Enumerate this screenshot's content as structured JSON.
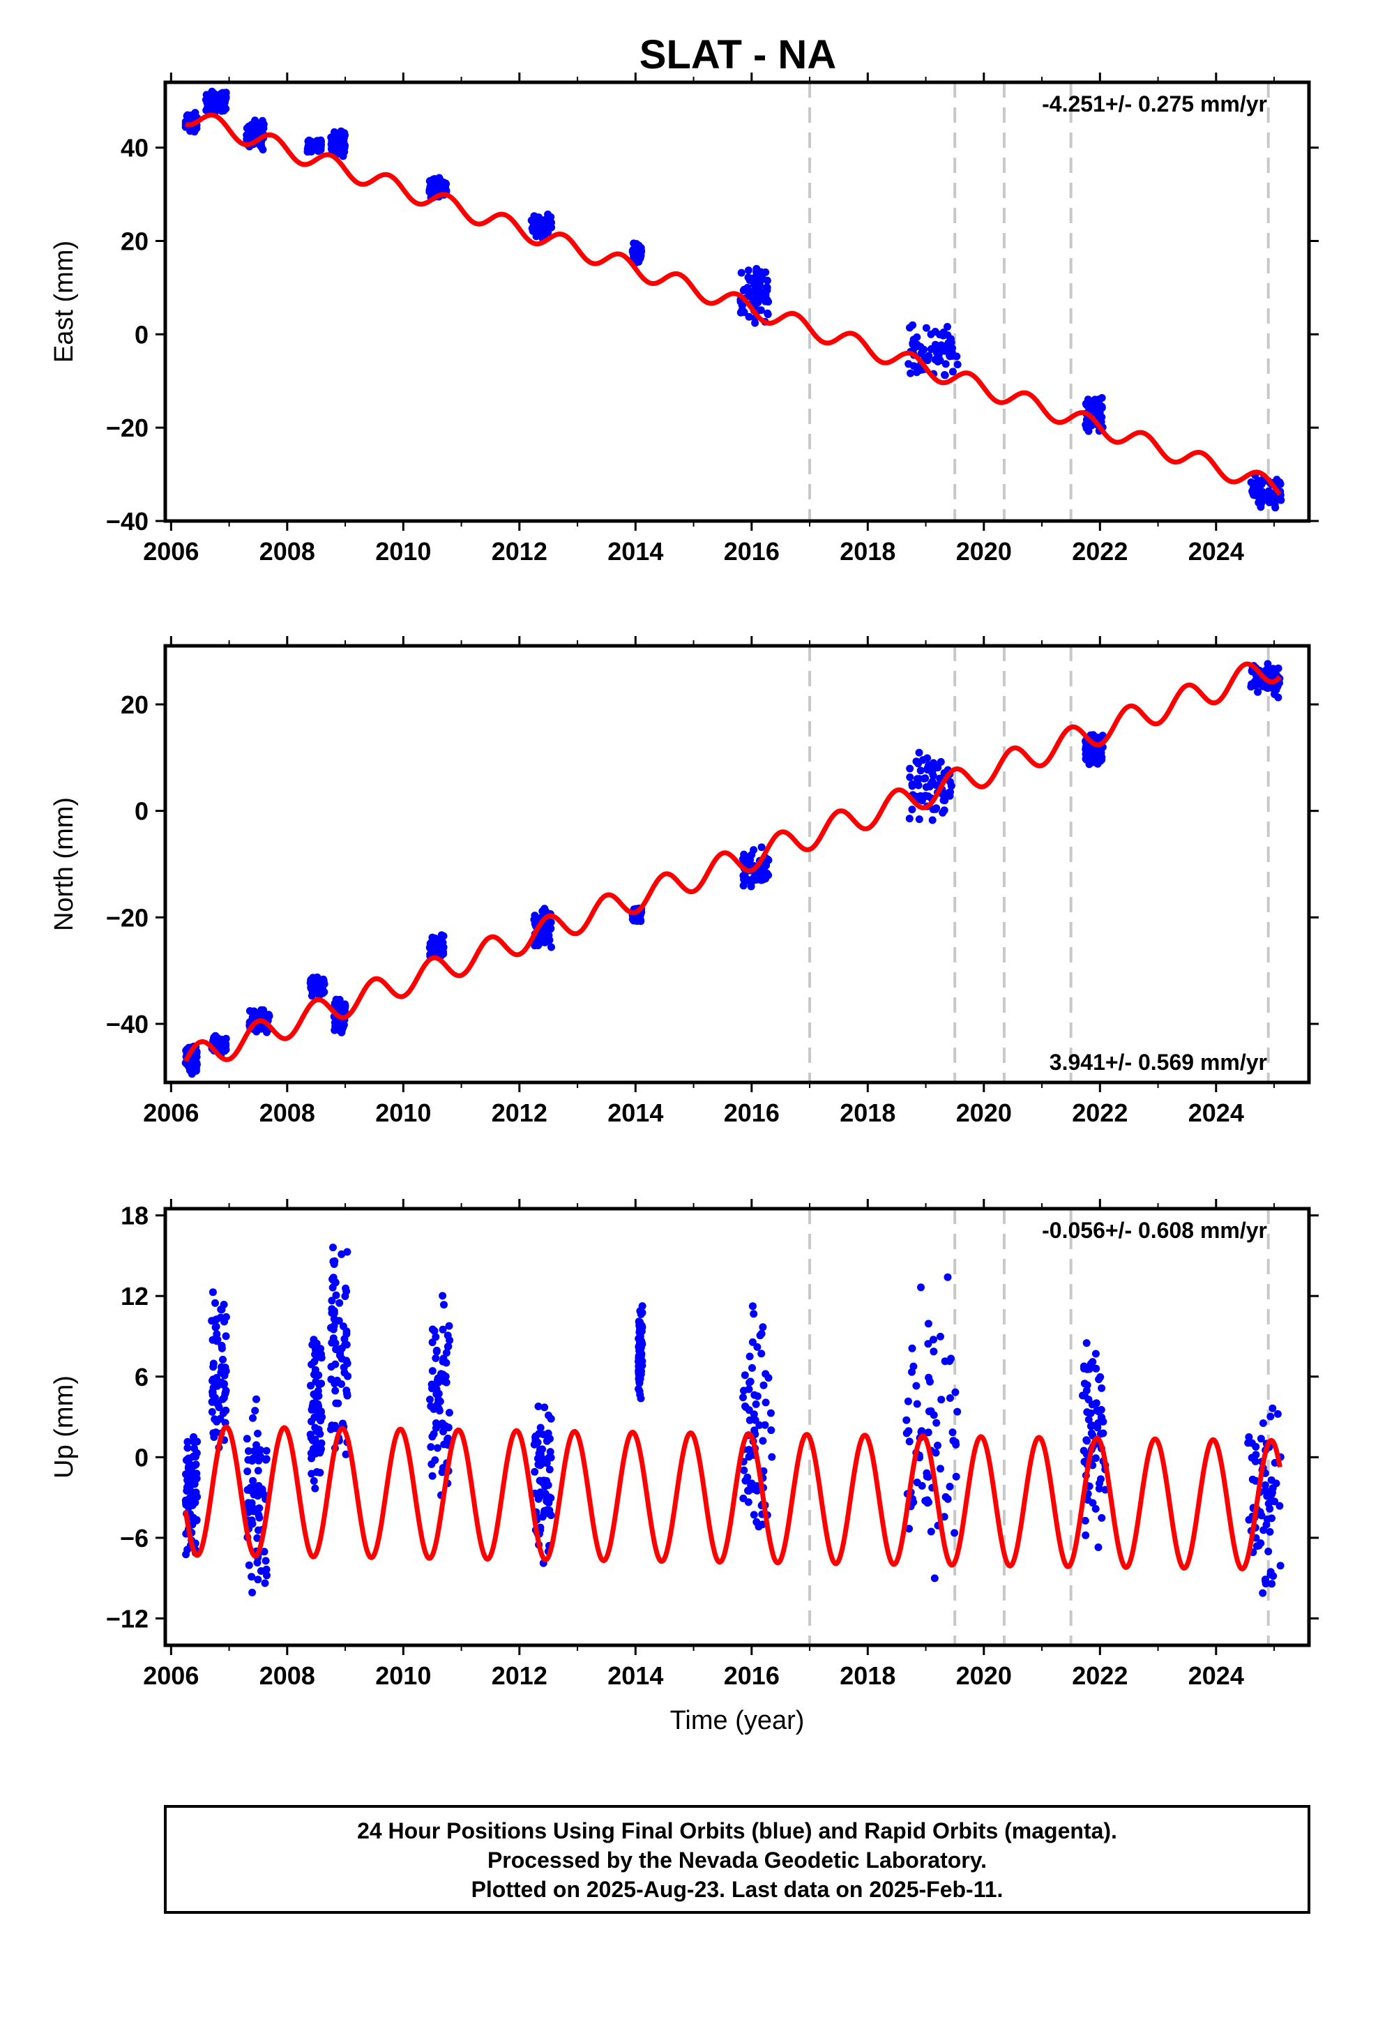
{
  "title": "SLAT - NA",
  "footer": {
    "lines": [
      "24 Hour Positions Using Final Orbits (blue) and Rapid Orbits (magenta).",
      "Processed by the Nevada Geodetic Laboratory.",
      "Plotted on 2025-Aug-23. Last data on 2025-Feb-11."
    ]
  },
  "colors": {
    "data": "#0000ff",
    "model": "#ff0000",
    "breaks": "#c8c8c8",
    "frame": "#000000"
  },
  "chart_data": [
    {
      "type": "scatter",
      "component": "east",
      "ylabel": "East (mm)",
      "xlabel": "",
      "xlim": [
        2005.9,
        2025.6
      ],
      "ylim": [
        -40,
        54
      ],
      "xticks": [
        2006,
        2008,
        2010,
        2012,
        2014,
        2016,
        2018,
        2020,
        2022,
        2024
      ],
      "yticks": [
        -40,
        -20,
        0,
        20,
        40
      ],
      "rate_label": "-4.251+/- 0.275 mm/yr",
      "rate_position": "top-right",
      "grid": false,
      "breaks": [
        2017.0,
        2019.5,
        2020.35,
        2021.5,
        2024.9
      ],
      "model": {
        "start": 2006.25,
        "end": 2025.1,
        "start_value": 47.0,
        "rate": -4.251,
        "amplitude": 2.0,
        "phase_year": 2006.75
      },
      "clusters": [
        {
          "x": [
            2006.25,
            2006.45
          ],
          "y": [
            43,
            48
          ]
        },
        {
          "x": [
            2006.6,
            2006.95
          ],
          "y": [
            47,
            53
          ]
        },
        {
          "x": [
            2007.3,
            2007.6
          ],
          "y": [
            39,
            46
          ]
        },
        {
          "x": [
            2008.35,
            2008.6
          ],
          "y": [
            39,
            42
          ]
        },
        {
          "x": [
            2008.75,
            2009.0
          ],
          "y": [
            38,
            44
          ]
        },
        {
          "x": [
            2010.45,
            2010.75
          ],
          "y": [
            29,
            34
          ]
        },
        {
          "x": [
            2012.2,
            2012.55
          ],
          "y": [
            20,
            26
          ]
        },
        {
          "x": [
            2013.95,
            2014.1
          ],
          "y": [
            15,
            20
          ]
        },
        {
          "x": [
            2015.8,
            2016.3
          ],
          "y": [
            2,
            15
          ]
        },
        {
          "x": [
            2018.7,
            2019.55
          ],
          "y": [
            -10,
            3
          ]
        },
        {
          "x": [
            2021.75,
            2022.05
          ],
          "y": [
            -21,
            -13
          ]
        },
        {
          "x": [
            2024.6,
            2025.12
          ],
          "y": [
            -38,
            -30
          ]
        }
      ]
    },
    {
      "type": "scatter",
      "component": "north",
      "ylabel": "North (mm)",
      "xlabel": "",
      "xlim": [
        2005.9,
        2025.6
      ],
      "ylim": [
        -51,
        31
      ],
      "xticks": [
        2006,
        2008,
        2010,
        2012,
        2014,
        2016,
        2018,
        2020,
        2022,
        2024
      ],
      "yticks": [
        -40,
        -20,
        0,
        20
      ],
      "rate_label": "3.941+/- 0.569 mm/yr",
      "rate_position": "bottom-right",
      "grid": false,
      "breaks": [
        2017.0,
        2019.5,
        2020.35,
        2021.5,
        2024.9
      ],
      "model": {
        "start": 2006.25,
        "end": 2025.1,
        "start_value": -47.0,
        "rate": 3.941,
        "amplitude": 2.6,
        "phase_year": 2006.5
      },
      "clusters": [
        {
          "x": [
            2006.25,
            2006.45
          ],
          "y": [
            -50,
            -44
          ]
        },
        {
          "x": [
            2006.7,
            2006.95
          ],
          "y": [
            -46,
            -42
          ]
        },
        {
          "x": [
            2007.35,
            2007.7
          ],
          "y": [
            -42,
            -37
          ]
        },
        {
          "x": [
            2008.4,
            2008.65
          ],
          "y": [
            -35,
            -31
          ]
        },
        {
          "x": [
            2008.8,
            2009.0
          ],
          "y": [
            -42,
            -35
          ]
        },
        {
          "x": [
            2010.45,
            2010.7
          ],
          "y": [
            -28,
            -23
          ]
        },
        {
          "x": [
            2012.25,
            2012.55
          ],
          "y": [
            -26,
            -18
          ]
        },
        {
          "x": [
            2013.95,
            2014.1
          ],
          "y": [
            -21,
            -18
          ]
        },
        {
          "x": [
            2015.85,
            2016.3
          ],
          "y": [
            -15,
            -6
          ]
        },
        {
          "x": [
            2018.7,
            2019.45
          ],
          "y": [
            -3,
            12
          ]
        },
        {
          "x": [
            2021.75,
            2022.05
          ],
          "y": [
            8,
            15
          ]
        },
        {
          "x": [
            2024.6,
            2025.12
          ],
          "y": [
            21,
            28
          ]
        }
      ]
    },
    {
      "type": "scatter",
      "component": "up",
      "ylabel": "Up (mm)",
      "xlabel": "Time (year)",
      "xlim": [
        2005.9,
        2025.6
      ],
      "ylim": [
        -14,
        18.5
      ],
      "xticks": [
        2006,
        2008,
        2010,
        2012,
        2014,
        2016,
        2018,
        2020,
        2022,
        2024
      ],
      "yticks": [
        -12,
        -6,
        0,
        6,
        12,
        18
      ],
      "rate_label": "-0.056+/- 0.608 mm/yr",
      "rate_position": "top-right",
      "grid": false,
      "breaks": [
        2017.0,
        2019.5,
        2020.35,
        2021.5,
        2024.9
      ],
      "model": {
        "start": 2006.25,
        "end": 2025.1,
        "start_value": -2.5,
        "rate": -0.056,
        "amplitude": 4.8,
        "phase_year": 2006.95
      },
      "clusters": [
        {
          "x": [
            2006.25,
            2006.45
          ],
          "y": [
            -8.5,
            3.5
          ]
        },
        {
          "x": [
            2006.7,
            2006.95
          ],
          "y": [
            -1,
            13
          ]
        },
        {
          "x": [
            2007.3,
            2007.65
          ],
          "y": [
            -11.7,
            6
          ]
        },
        {
          "x": [
            2008.4,
            2008.6
          ],
          "y": [
            -3,
            9
          ]
        },
        {
          "x": [
            2008.75,
            2009.05
          ],
          "y": [
            -1,
            17.8
          ]
        },
        {
          "x": [
            2010.45,
            2010.8
          ],
          "y": [
            -3,
            12.5
          ]
        },
        {
          "x": [
            2012.25,
            2012.55
          ],
          "y": [
            -9,
            5
          ]
        },
        {
          "x": [
            2014.05,
            2014.12
          ],
          "y": [
            4,
            12
          ]
        },
        {
          "x": [
            2015.85,
            2016.35
          ],
          "y": [
            -8,
            13
          ]
        },
        {
          "x": [
            2018.65,
            2019.55
          ],
          "y": [
            -12,
            14
          ]
        },
        {
          "x": [
            2021.7,
            2022.1
          ],
          "y": [
            -7,
            10
          ]
        },
        {
          "x": [
            2024.55,
            2025.12
          ],
          "y": [
            -13,
            5
          ]
        }
      ]
    }
  ]
}
